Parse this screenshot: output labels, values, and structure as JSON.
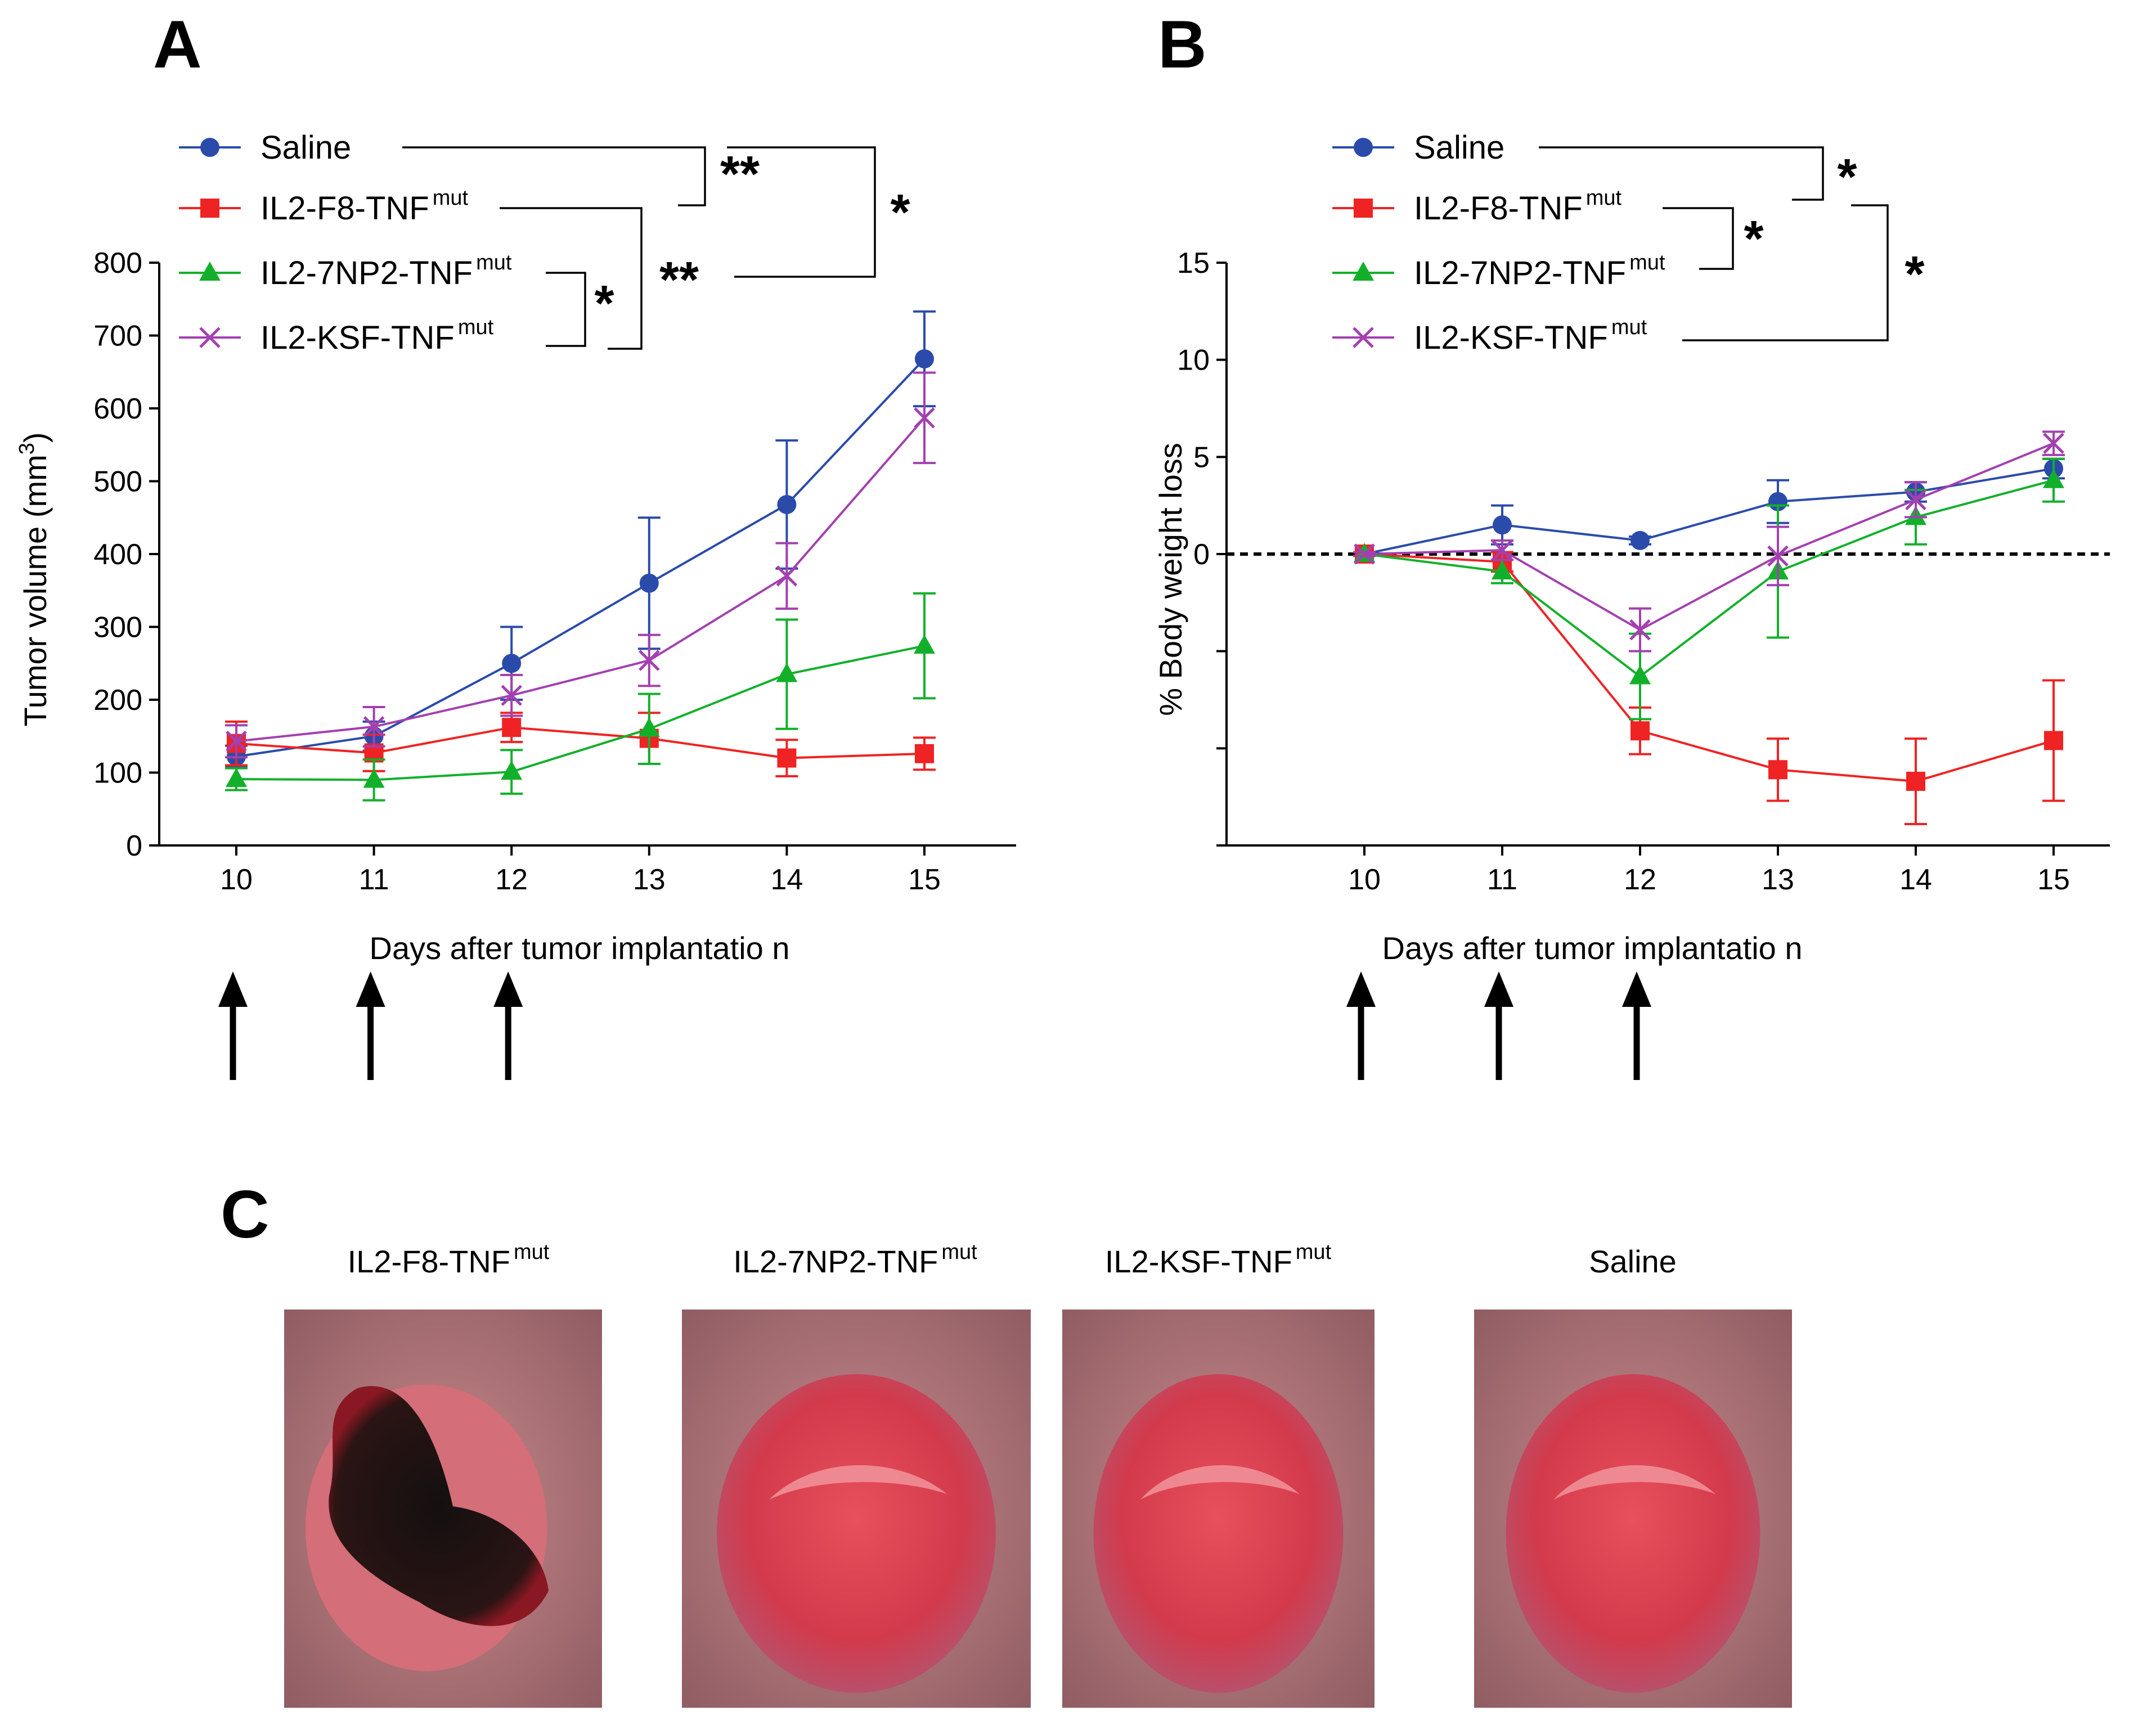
{
  "panels": {
    "a": "A",
    "b": "B",
    "c": "C"
  },
  "colors": {
    "saline": "#2b4bab",
    "f8": "#ef2323",
    "np2": "#12b02a",
    "ksf": "#a340b0",
    "axis": "#000000"
  },
  "chart_data": [
    {
      "type": "line",
      "panel": "A",
      "x": [
        10,
        11,
        12,
        13,
        14,
        15
      ],
      "xlabel": "Days after tumor implantatio n",
      "ylabel": "Tumor volume (mm3)",
      "ylabel_main": "Tumor volume (mm",
      "ylabel_sup": "3",
      "ylabel_end": ")",
      "ylim": [
        0,
        800
      ],
      "yticks": [
        0,
        100,
        200,
        300,
        400,
        500,
        600,
        700,
        800
      ],
      "series": [
        {
          "name": "Saline",
          "key": "saline",
          "marker": "circle",
          "values": [
            122,
            150,
            250,
            360,
            468,
            668
          ],
          "err": [
            15,
            20,
            50,
            90,
            88,
            65
          ]
        },
        {
          "name": "IL2-F8-TNFmut",
          "key": "f8",
          "marker": "square",
          "values": [
            140,
            127,
            162,
            147,
            120,
            126
          ],
          "err": [
            30,
            25,
            20,
            35,
            25,
            22
          ]
        },
        {
          "name": "IL2-7NP2-TNFmut",
          "key": "np2",
          "marker": "triangle",
          "values": [
            91,
            90,
            101,
            160,
            235,
            274
          ],
          "err": [
            15,
            28,
            30,
            48,
            75,
            72
          ]
        },
        {
          "name": "IL2-KSF-TNFmut",
          "key": "ksf",
          "marker": "x",
          "values": [
            143,
            163,
            206,
            254,
            370,
            587
          ],
          "err": [
            22,
            27,
            28,
            35,
            45,
            62
          ]
        }
      ],
      "significance": [
        "**",
        "*",
        "**",
        "*"
      ],
      "treatment_days": [
        10,
        11,
        12
      ]
    },
    {
      "type": "line",
      "panel": "B",
      "x": [
        10,
        11,
        12,
        13,
        14,
        15
      ],
      "xlabel": "Days after tumor implantatio n",
      "ylabel": "% Body weight loss",
      "ylim": [
        -15,
        15
      ],
      "yticks": [
        15,
        10,
        5,
        0
      ],
      "ytick_labels": [
        "15",
        "10",
        "5",
        "0"
      ],
      "series": [
        {
          "name": "Saline",
          "key": "saline",
          "marker": "circle",
          "values": [
            0,
            1.5,
            0.7,
            2.7,
            3.2,
            4.4
          ],
          "err": [
            0.1,
            1.0,
            0.2,
            1.1,
            0.5,
            0.5
          ]
        },
        {
          "name": "IL2-F8-TNFmut",
          "key": "f8",
          "marker": "square",
          "values": [
            0,
            -0.4,
            -9.1,
            -11.1,
            -11.7,
            -9.6
          ],
          "err": [
            0.1,
            0.5,
            1.2,
            1.6,
            2.2,
            3.1
          ]
        },
        {
          "name": "IL2-7NP2-TNFmut",
          "key": "np2",
          "marker": "triangle",
          "values": [
            0,
            -0.9,
            -6.3,
            -0.9,
            1.9,
            3.8
          ],
          "err": [
            0.1,
            0.6,
            2.2,
            3.4,
            1.4,
            1.1
          ]
        },
        {
          "name": "IL2-KSF-TNFmut",
          "key": "ksf",
          "marker": "x",
          "values": [
            0,
            0.2,
            -3.9,
            -0.1,
            2.8,
            5.7
          ],
          "err": [
            0.1,
            0.5,
            1.1,
            1.5,
            0.9,
            0.6
          ]
        }
      ],
      "significance": [
        "*",
        "*",
        "*"
      ],
      "treatment_days": [
        10,
        11,
        12
      ]
    }
  ],
  "legend": [
    {
      "key": "saline",
      "base": "Saline",
      "sup": ""
    },
    {
      "key": "f8",
      "base": "IL2-F8-TNF",
      "sup": "mut"
    },
    {
      "key": "np2",
      "base": "IL2-7NP2-TNF",
      "sup": "mut"
    },
    {
      "key": "ksf",
      "base": "IL2-KSF-TNF",
      "sup": "mut"
    }
  ],
  "photos": [
    {
      "base": "IL2-F8-TNF",
      "sup": "mut",
      "kind": "necrotic"
    },
    {
      "base": "IL2-7NP2-TNF",
      "sup": "mut",
      "kind": "tumor"
    },
    {
      "base": "IL2-KSF-TNF",
      "sup": "mut",
      "kind": "tumor"
    },
    {
      "base": "Saline",
      "sup": "",
      "kind": "tumor"
    }
  ]
}
